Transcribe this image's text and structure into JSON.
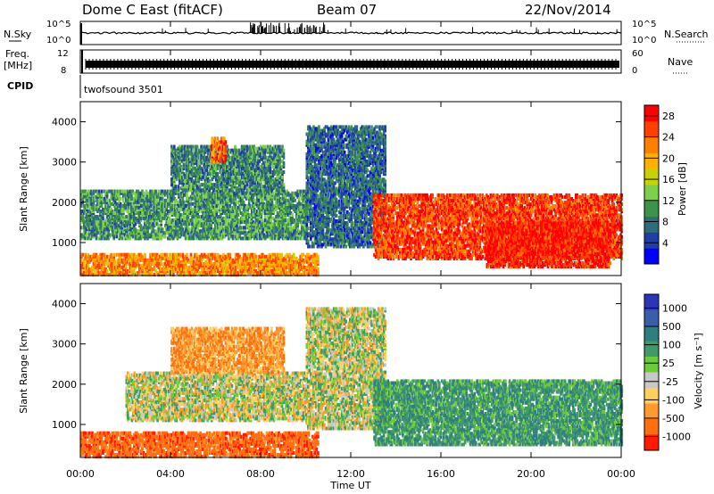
{
  "header": {
    "station": "Dome C East (fitACF)",
    "beam": "Beam 07",
    "date": "22/Nov/2014"
  },
  "strip_labels": {
    "nsky": "N.Sky",
    "freq_line1": "Freq.",
    "freq_line2": "[MHz]",
    "cpid": "CPID",
    "nsearch": "N.Search",
    "nave": "Nave",
    "cpid_value": "twofsound 3501"
  },
  "strip_ticks": {
    "noise_left_top": "10^5",
    "noise_left_bottom": "10^0",
    "noise_right_top": "10^5",
    "noise_right_bottom": "10^0",
    "freq_left_top": "12",
    "freq_left_bottom": "8",
    "nave_right_top": "60",
    "nave_right_bottom": "0"
  },
  "colors": {
    "power_scale": [
      "#0000ff",
      "#1f3fa8",
      "#2e6e7a",
      "#3d9448",
      "#7cd04b",
      "#c8d200",
      "#ffb000",
      "#ff8000",
      "#ff4000",
      "#ff0000"
    ],
    "velocity_scale": [
      "#2a36b8",
      "#3a5fa8",
      "#2f7e80",
      "#3f9a68",
      "#6ccc38",
      "#c8c8c8",
      "#ffd060",
      "#ff9a30",
      "#ff6f10",
      "#ff1a00"
    ]
  },
  "chart_data": [
    {
      "type": "heatmap",
      "name_in_figure": "power",
      "ylabel": "Slant Range [km]",
      "y_ticks": [
        "1000",
        "2000",
        "3000",
        "4000"
      ],
      "ylim": [
        180,
        4500
      ],
      "xlim_hours": [
        0,
        24
      ],
      "x_ticks": [
        "00:00",
        "04:00",
        "08:00",
        "12:00",
        "16:00",
        "20:00",
        "00:00"
      ],
      "colorbar": {
        "label": "Power [dB]",
        "ticks": [
          "4",
          "8",
          "12",
          "16",
          "20",
          "24",
          "28"
        ],
        "range": [
          0,
          30
        ]
      },
      "regions": [
        {
          "t": [
            0.0,
            10.5
          ],
          "r": [
            200,
            700
          ],
          "value": 22
        },
        {
          "t": [
            0.0,
            10.0
          ],
          "r": [
            1100,
            2300
          ],
          "value": 10
        },
        {
          "t": [
            4.0,
            9.0
          ],
          "r": [
            2300,
            3400
          ],
          "value": 9
        },
        {
          "t": [
            5.8,
            6.4
          ],
          "r": [
            3000,
            3600
          ],
          "value": 24
        },
        {
          "t": [
            10.0,
            13.5
          ],
          "r": [
            900,
            3900
          ],
          "value": 7
        },
        {
          "t": [
            13.0,
            24.0
          ],
          "r": [
            600,
            2200
          ],
          "value": 26
        },
        {
          "t": [
            18.0,
            23.5
          ],
          "r": [
            400,
            1500
          ],
          "value": 28
        }
      ]
    },
    {
      "type": "heatmap",
      "name_in_figure": "velocity",
      "ylabel": "Slant Range [km]",
      "xlabel": "Time UT",
      "y_ticks": [
        "1000",
        "2000",
        "3000",
        "4000"
      ],
      "ylim": [
        180,
        4500
      ],
      "xlim_hours": [
        0,
        24
      ],
      "x_ticks": [
        "00:00",
        "04:00",
        "08:00",
        "12:00",
        "16:00",
        "20:00",
        "00:00"
      ],
      "colorbar": {
        "label": "Velocity [m s⁻¹]",
        "ticks": [
          "1000",
          "500",
          "100",
          "25",
          "-25",
          "-100",
          "-500",
          "-1000"
        ]
      },
      "regions": [
        {
          "t": [
            0.0,
            10.5
          ],
          "r": [
            200,
            800
          ],
          "value": -400
        },
        {
          "t": [
            2.0,
            10.0
          ],
          "r": [
            1100,
            2300
          ],
          "value": 0
        },
        {
          "t": [
            4.0,
            9.0
          ],
          "r": [
            2300,
            3400
          ],
          "value": -200
        },
        {
          "t": [
            10.0,
            13.5
          ],
          "r": [
            900,
            3900
          ],
          "value": 10
        },
        {
          "t": [
            13.0,
            24.0
          ],
          "r": [
            500,
            2100
          ],
          "value": 200
        }
      ]
    }
  ]
}
